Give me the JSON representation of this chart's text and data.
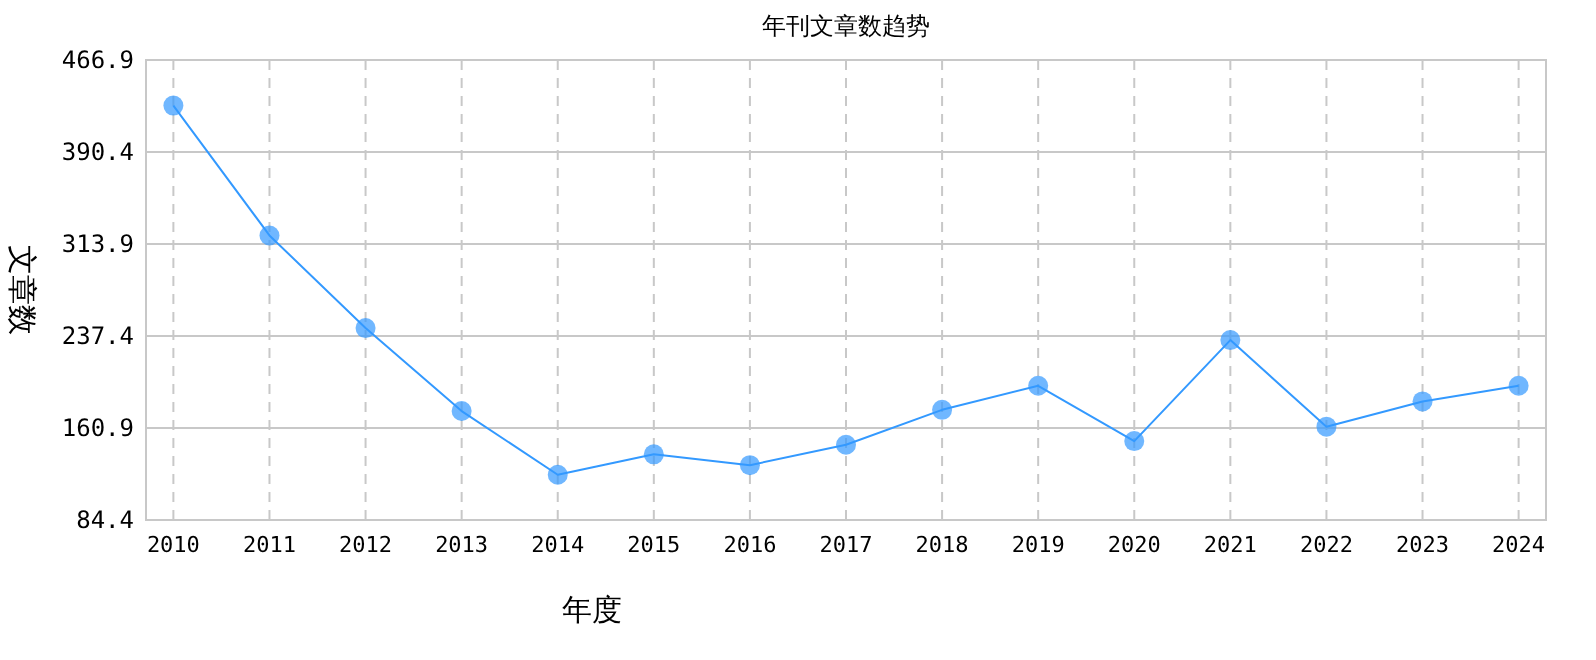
{
  "chart_data": {
    "type": "line",
    "title": "年刊文章数趋势",
    "xlabel": "年度",
    "ylabel": "文章数",
    "categories": [
      "2010",
      "2011",
      "2012",
      "2013",
      "2014",
      "2015",
      "2016",
      "2017",
      "2018",
      "2019",
      "2020",
      "2021",
      "2022",
      "2023",
      "2024"
    ],
    "series": [
      {
        "color": "#3399ff",
        "values": [
          429,
          321,
          244,
          175,
          122,
          139,
          130,
          147,
          176,
          196,
          150,
          234,
          162,
          183,
          196
        ]
      }
    ],
    "ylim": [
      84.4,
      466.9
    ],
    "yticks": [
      {
        "value": 84.4,
        "label": "84.4"
      },
      {
        "value": 160.9,
        "label": "160.9"
      },
      {
        "value": 237.4,
        "label": "237.4"
      },
      {
        "value": 313.9,
        "label": "313.9"
      },
      {
        "value": 390.4,
        "label": "390.4"
      },
      {
        "value": 466.9,
        "label": "466.9"
      }
    ],
    "grid": true,
    "marker": "circle",
    "line_style": "solid"
  }
}
